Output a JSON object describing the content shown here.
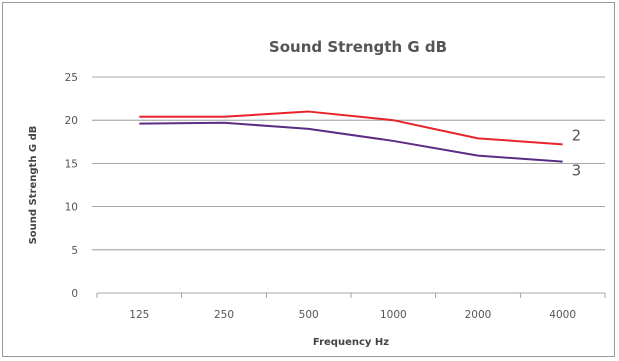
{
  "chart_data": {
    "type": "line",
    "title": "Sound Strength G dB",
    "xlabel": "Frequency Hz",
    "ylabel": "Sound Strength G dB",
    "categories": [
      "125",
      "250",
      "500",
      "1000",
      "2000",
      "4000"
    ],
    "ylim": [
      0,
      25
    ],
    "yticks": [
      0,
      5,
      10,
      15,
      20,
      25
    ],
    "grid": "horizontal",
    "series": [
      {
        "name": "2",
        "color": "#e8232a",
        "values": [
          20.4,
          20.4,
          21.0,
          20.0,
          17.9,
          17.2
        ]
      },
      {
        "name": "3",
        "color": "#5a2d82",
        "values": [
          19.6,
          19.7,
          19.0,
          17.6,
          15.9,
          15.2
        ]
      }
    ]
  }
}
